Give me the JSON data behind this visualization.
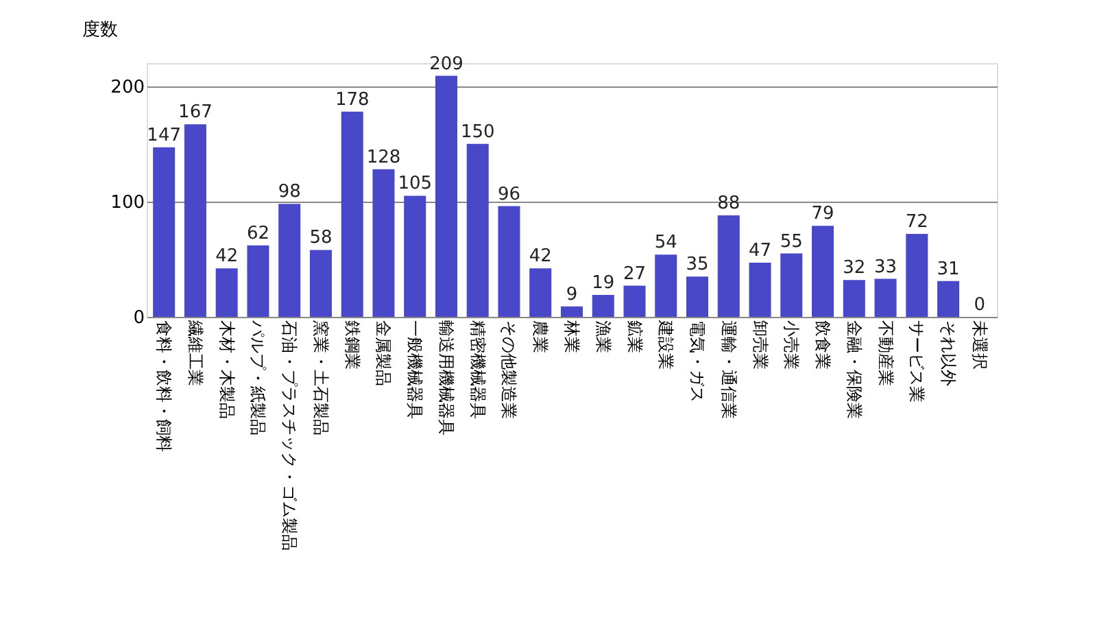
{
  "chart_data": {
    "type": "bar",
    "ylabel": "度数",
    "categories": [
      "食料・飲料・飼料",
      "繊維工業",
      "木材・木製品",
      "パルプ・紙製品",
      "石油・プラスチック・ゴム製品",
      "窯業・土石製品",
      "鉄鋼業",
      "金属製品",
      "一般機械器具",
      "輸送用機械器具",
      "精密機械器具",
      "その他製造業",
      "農業",
      "林業",
      "漁業",
      "鉱業",
      "建設業",
      "電気・ガス",
      "運輸・通信業",
      "卸売業",
      "小売業",
      "飲食業",
      "金融・保険業",
      "不動産業",
      "サービス業",
      "それ以外",
      "未選択"
    ],
    "values": [
      147,
      167,
      42,
      62,
      98,
      58,
      178,
      128,
      105,
      209,
      150,
      96,
      42,
      9,
      19,
      27,
      54,
      35,
      88,
      47,
      55,
      79,
      32,
      33,
      72,
      31,
      0
    ],
    "color": "#4848c8",
    "ylim": [
      0,
      220
    ],
    "yticks": [
      0,
      100,
      200
    ],
    "grid": "y",
    "data_labels": true
  }
}
